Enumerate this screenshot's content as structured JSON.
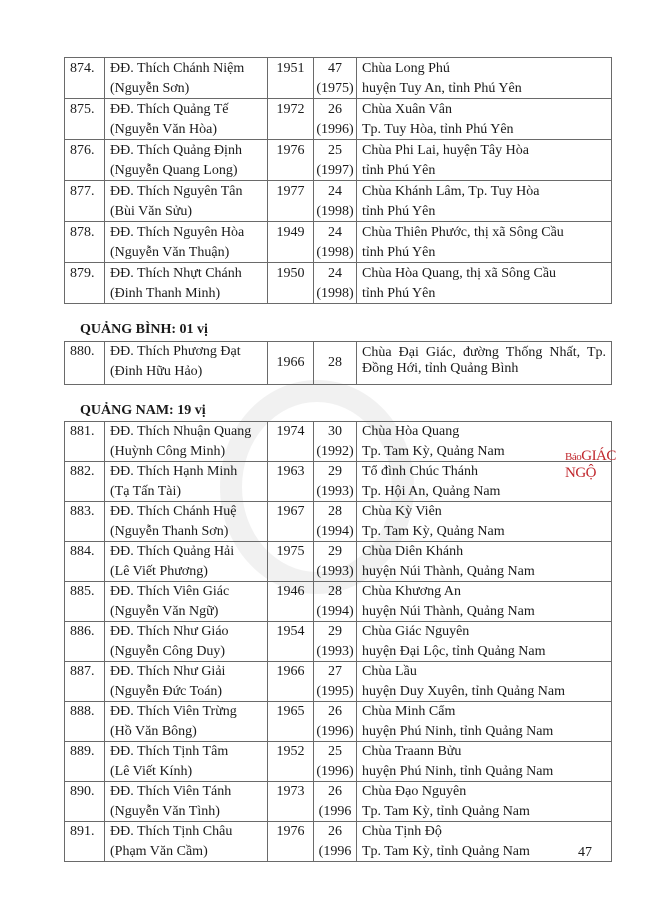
{
  "table_phu_yen": [
    {
      "no": "874.",
      "name": "ĐĐ. Thích Chánh Niệm",
      "lay_name": "(Nguyễn Sơn)",
      "birth": "1951",
      "age": "47",
      "age_year": "(1975)",
      "place1": "Chùa Long Phú",
      "place2": "huyện Tuy An, tỉnh Phú Yên"
    },
    {
      "no": "875.",
      "name": "ĐĐ. Thích Quảng Tế",
      "lay_name": "(Nguyễn Văn Hòa)",
      "birth": "1972",
      "age": "26",
      "age_year": "(1996)",
      "place1": "Chùa Xuân Vân",
      "place2": "Tp. Tuy Hòa, tỉnh Phú Yên"
    },
    {
      "no": "876.",
      "name": "ĐĐ. Thích Quảng Định",
      "lay_name": "(Nguyễn Quang Long)",
      "birth": "1976",
      "age": "25",
      "age_year": "(1997)",
      "place1": "Chùa Phi Lai, huyện Tây Hòa",
      "place2": "tỉnh Phú Yên"
    },
    {
      "no": "877.",
      "name": "ĐĐ. Thích Nguyên Tân",
      "lay_name": "(Bùi Văn Sửu)",
      "birth": "1977",
      "age": "24",
      "age_year": "(1998)",
      "place1": "Chùa Khánh Lâm, Tp. Tuy Hòa",
      "place2": "tỉnh Phú Yên"
    },
    {
      "no": "878.",
      "name": "ĐĐ. Thích Nguyên Hòa",
      "lay_name": "(Nguyễn Văn Thuận)",
      "birth": "1949",
      "age": "24",
      "age_year": "(1998)",
      "place1": "Chùa Thiên Phước, thị xã Sông Cầu",
      "place2": "tỉnh Phú Yên"
    },
    {
      "no": "879.",
      "name": "ĐĐ. Thích Nhựt Chánh",
      "lay_name": "(Đinh Thanh Minh)",
      "birth": "1950",
      "age": "24",
      "age_year": "(1998)",
      "place1": "Chùa Hòa Quang, thị xã Sông Cầu",
      "place2": "tỉnh Phú Yên"
    }
  ],
  "section_quang_binh": {
    "heading": "QUẢNG BÌNH: 01 vị",
    "rows": [
      {
        "no": "880.",
        "name": "ĐĐ. Thích Phương Đạt",
        "lay_name": "(Đinh Hữu Hảo)",
        "birth": "1966",
        "age": "28",
        "place1": "Chùa Đại Giác, đường Thống Nhất, Tp.",
        "place2": "Đồng Hới, tỉnh Quảng Bình"
      }
    ]
  },
  "section_quang_nam": {
    "heading": "QUẢNG NAM: 19 vị",
    "rows": [
      {
        "no": "881.",
        "name": "ĐĐ. Thích Nhuận Quang",
        "lay_name": "(Huỳnh Công Minh)",
        "birth": "1974",
        "age": "30",
        "age_year": "(1992)",
        "place1": "Chùa Hòa Quang",
        "place2": "Tp. Tam Kỳ, Quảng Nam"
      },
      {
        "no": "882.",
        "name": "ĐĐ. Thích Hạnh Minh",
        "lay_name": "(Tạ Tấn Tài)",
        "birth": "1963",
        "age": "29",
        "age_year": "(1993)",
        "place1": "Tổ đình Chúc Thánh",
        "place2": "Tp. Hội An, Quảng Nam"
      },
      {
        "no": "883.",
        "name": "ĐĐ. Thích Chánh Huệ",
        "lay_name": "(Nguyễn Thanh Sơn)",
        "birth": "1967",
        "age": "28",
        "age_year": "(1994)",
        "place1": "Chùa Kỳ Viên",
        "place2": "Tp. Tam Kỳ, Quảng Nam"
      },
      {
        "no": "884.",
        "name": "ĐĐ. Thích Quảng Hải",
        "lay_name": "(Lê Viết Phương)",
        "birth": "1975",
        "age": "29",
        "age_year": "(1993)",
        "place1": "Chùa Diên Khánh",
        "place2": "huyện Núi Thành, Quảng Nam"
      },
      {
        "no": "885.",
        "name": "ĐĐ. Thích Viên Giác",
        "lay_name": "(Nguyễn Văn Ngữ)",
        "birth": "1946",
        "age": "28",
        "age_year": "(1994)",
        "place1": "Chùa Khương An",
        "place2": "huyện Núi Thành, Quảng Nam"
      },
      {
        "no": "886.",
        "name": "ĐĐ. Thích Như Giáo",
        "lay_name": "(Nguyễn Công Duy)",
        "birth": "1954",
        "age": "29",
        "age_year": "(1993)",
        "place1": "Chùa Giác Nguyên",
        "place2": "huyện Đại Lộc, tỉnh Quảng Nam"
      },
      {
        "no": "887.",
        "name": "ĐĐ. Thích Như Giải",
        "lay_name": "(Nguyễn Đức Toán)",
        "birth": "1966",
        "age": "27",
        "age_year": "(1995)",
        "place1": "Chùa Lầu",
        "place2": "huyện Duy Xuyên, tỉnh Quảng Nam"
      },
      {
        "no": "888.",
        "name": "ĐĐ. Thích Viên Trừng",
        "lay_name": "(Hồ Văn Bông)",
        "birth": "1965",
        "age": "26",
        "age_year": "(1996)",
        "place1": "Chùa Minh Cẩm",
        "place2": "huyện Phú Ninh, tỉnh Quảng Nam"
      },
      {
        "no": "889.",
        "name": "ĐĐ. Thích Tịnh Tâm",
        "lay_name": "(Lê Viết Kính)",
        "birth": "1952",
        "age": "25",
        "age_year": "(1996)",
        "place1": "Chùa Traann Bửu",
        "place2": "huyện Phú Ninh, tỉnh Quảng Nam"
      },
      {
        "no": "890.",
        "name": "ĐĐ. Thích Viên Tánh",
        "lay_name": "(Nguyễn Văn Tình)",
        "birth": "1973",
        "age": "26",
        "age_year": "(1996",
        "place1": "Chùa Đạo Nguyên",
        "place2": "Tp. Tam Kỳ, tỉnh Quảng Nam"
      },
      {
        "no": "891.",
        "name": "ĐĐ. Thích Tịnh Châu",
        "lay_name": "(Phạm Văn Cầm)",
        "birth": "1976",
        "age": "26",
        "age_year": "(1996",
        "place1": "Chùa Tịnh Độ",
        "place2": "Tp. Tam Kỳ, tỉnh Quảng Nam"
      }
    ]
  },
  "watermark": {
    "brand_prefix": "Báo",
    "brand_name": "GIÁC NGỘ",
    "color": "#c0272d"
  },
  "page_number": "47"
}
